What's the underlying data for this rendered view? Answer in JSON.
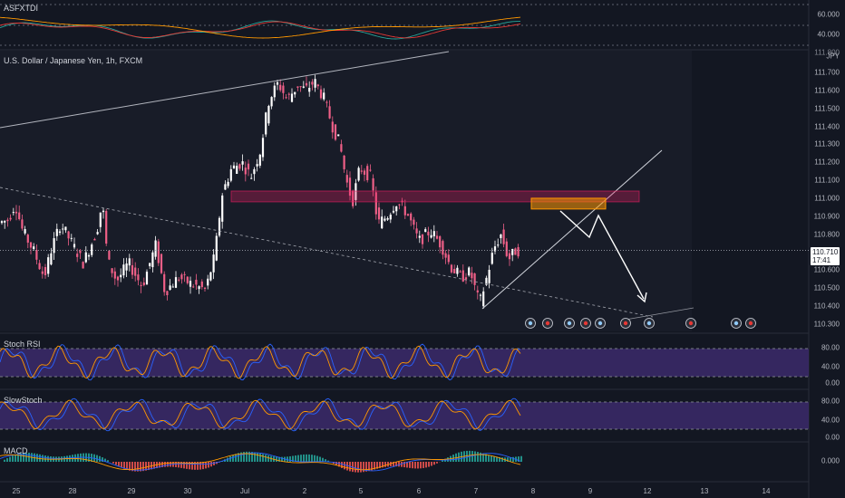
{
  "panes": {
    "top_indicator": {
      "label": "ASFXTDI"
    },
    "main": {
      "label": "U.S. Dollar / Japanese Yen, 1h, FXCM",
      "currency": "JPY"
    },
    "stoch_rsi": {
      "label": "Stoch RSI"
    },
    "slow_stoch": {
      "label": "SlowStoch"
    },
    "macd": {
      "label": "MACD"
    }
  },
  "last_price": {
    "value": "110.710",
    "countdown": "17:41"
  },
  "chart_data": {
    "type": "candlestick",
    "symbol": "U.S. Dollar / Japanese Yen",
    "interval": "1h",
    "source": "FXCM",
    "price_axis": {
      "ticks": [
        "111.700",
        "111.600",
        "111.500",
        "111.400",
        "111.300",
        "111.200",
        "111.100",
        "111.000",
        "110.900",
        "110.800",
        "110.600",
        "110.500",
        "110.400",
        "110.300"
      ],
      "top_partial": "111.800",
      "ylim": [
        110.25,
        111.82
      ]
    },
    "time_axis": {
      "ticks": [
        "25",
        "28",
        "29",
        "30",
        "Jul",
        "2",
        "5",
        "6",
        "7",
        "8",
        "9",
        "12",
        "13",
        "14"
      ]
    },
    "price_path": [
      [
        0,
        110.86
      ],
      [
        12,
        110.88
      ],
      [
        20,
        110.97
      ],
      [
        28,
        110.82
      ],
      [
        40,
        110.71
      ],
      [
        52,
        110.56
      ],
      [
        60,
        110.72
      ],
      [
        70,
        110.86
      ],
      [
        80,
        110.77
      ],
      [
        95,
        110.64
      ],
      [
        110,
        110.82
      ],
      [
        116,
        110.98
      ],
      [
        122,
        110.65
      ],
      [
        132,
        110.54
      ],
      [
        145,
        110.64
      ],
      [
        160,
        110.51
      ],
      [
        175,
        110.74
      ],
      [
        185,
        110.48
      ],
      [
        200,
        110.56
      ],
      [
        215,
        110.52
      ],
      [
        230,
        110.49
      ],
      [
        240,
        110.68
      ],
      [
        248,
        111.02
      ],
      [
        258,
        111.16
      ],
      [
        270,
        111.2
      ],
      [
        280,
        111.12
      ],
      [
        290,
        111.26
      ],
      [
        300,
        111.55
      ],
      [
        310,
        111.64
      ],
      [
        320,
        111.55
      ],
      [
        332,
        111.63
      ],
      [
        340,
        111.6
      ],
      [
        350,
        111.65
      ],
      [
        360,
        111.56
      ],
      [
        370,
        111.4
      ],
      [
        378,
        111.3
      ],
      [
        385,
        111.1
      ],
      [
        392,
        110.98
      ],
      [
        400,
        111.17
      ],
      [
        412,
        111.12
      ],
      [
        420,
        110.86
      ],
      [
        430,
        110.9
      ],
      [
        440,
        110.98
      ],
      [
        452,
        110.92
      ],
      [
        465,
        110.76
      ],
      [
        478,
        110.82
      ],
      [
        490,
        110.74
      ],
      [
        500,
        110.62
      ],
      [
        512,
        110.56
      ],
      [
        522,
        110.59
      ],
      [
        532,
        110.41
      ],
      [
        540,
        110.56
      ],
      [
        548,
        110.72
      ],
      [
        556,
        110.8
      ],
      [
        564,
        110.66
      ],
      [
        572,
        110.71
      ]
    ],
    "zones": [
      {
        "type": "resistance",
        "from_x": 255,
        "to_x": 585,
        "top": 111.04,
        "bottom": 110.98,
        "color": "#e91e63"
      },
      {
        "type": "target",
        "from_x": 585,
        "to_x": 668,
        "top": 111.0,
        "bottom": 110.94,
        "color": "#ff9800"
      }
    ],
    "projection": "up to zone, small pullback, then down",
    "stoch_axis": [
      "80.00",
      "40.00",
      "0.00"
    ],
    "macd_axis": [
      "0.000"
    ],
    "top_axis": [
      "60.000",
      "40.000"
    ]
  },
  "colors": {
    "up": "#ffffff",
    "down": "#ef5f87",
    "band": "#3c2a6b",
    "zone_pink": "#e91e63",
    "zone_orange": "#ff9800"
  },
  "icons": {
    "events": [
      "flag-us-icon",
      "flag-jp-icon",
      "flag-us-icon",
      "flag-jp-icon",
      "flag-us-icon",
      "flag-jp-icon",
      "flag-us-icon",
      "flag-us-icon"
    ]
  }
}
